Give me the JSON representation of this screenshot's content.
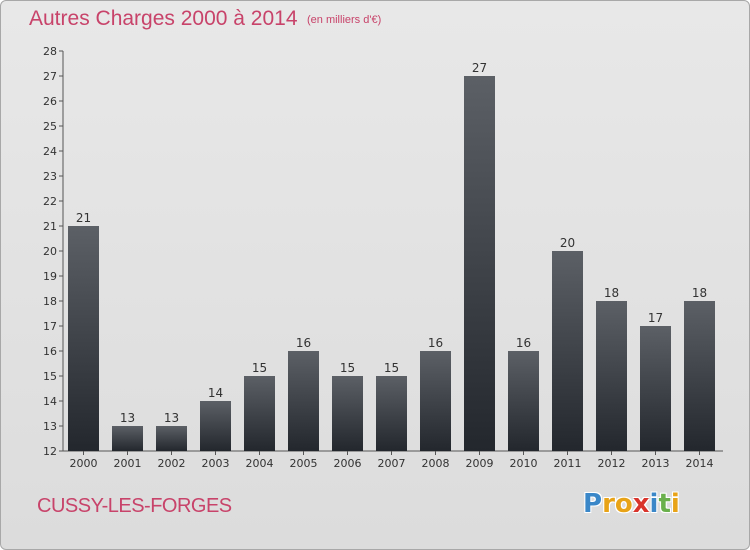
{
  "header": {
    "title": "Autres Charges 2000 à 2014",
    "subtitle": "(en milliers d'€)"
  },
  "footer": {
    "city": "CUSSY-LES-FORGES",
    "logo_letters": [
      "P",
      "r",
      "o",
      "x",
      "i",
      "t",
      "i"
    ],
    "logo_colors": [
      "#3a87c8",
      "#e8a317",
      "#e8a317",
      "#d9342b",
      "#3a87c8",
      "#6ab04c",
      "#e8a317"
    ]
  },
  "colors": {
    "title": "#c8436a",
    "bar_top": "#5c6066",
    "bar_bottom": "#23272d"
  },
  "chart_data": {
    "type": "bar",
    "categories": [
      "2000",
      "2001",
      "2002",
      "2003",
      "2004",
      "2005",
      "2006",
      "2007",
      "2008",
      "2009",
      "2010",
      "2011",
      "2012",
      "2013",
      "2014"
    ],
    "values": [
      21,
      13,
      13,
      14,
      15,
      16,
      15,
      15,
      16,
      27,
      16,
      20,
      18,
      17,
      18
    ],
    "data_labels": [
      "21",
      "13",
      "13",
      "14",
      "15",
      "16",
      "15",
      "15",
      "16",
      "27",
      "16",
      "20",
      "18",
      "17",
      "18"
    ],
    "ylim": [
      12,
      28
    ],
    "yticks": [
      "12",
      "13",
      "14",
      "15",
      "16",
      "17",
      "18",
      "19",
      "20",
      "21",
      "22",
      "23",
      "24",
      "25",
      "26",
      "27",
      "28"
    ],
    "grid": false
  }
}
